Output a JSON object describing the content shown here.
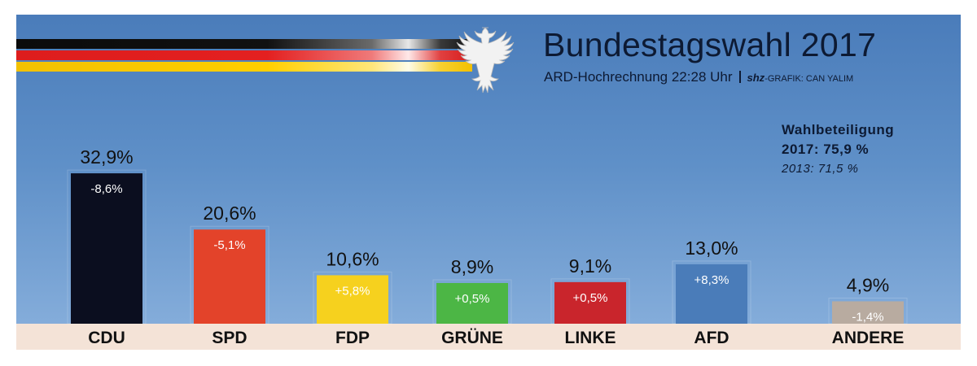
{
  "header": {
    "title": "Bundestagswahl 2017",
    "subtitle": "ARD-Hochrechnung 22:28 Uhr",
    "brand": "shz",
    "credit": "-GRAFIK: CAN YALIM"
  },
  "turnout": {
    "label": "Wahlbeteiligung",
    "current": "2017: 75,9 %",
    "previous": "2013: 71,5 %"
  },
  "colors": {
    "CDU": "#0b0e1f",
    "SPD": "#e3432a",
    "FDP": "#f6d11e",
    "GRÜNE": "#4cb645",
    "LINKE": "#c9252c",
    "AFD": "#4a7cb9",
    "ANDERE": "#b8aba0"
  },
  "chart_data": {
    "type": "bar",
    "title": "Bundestagswahl 2017",
    "categories": [
      "CDU",
      "SPD",
      "FDP",
      "GRÜNE",
      "LINKE",
      "AFD",
      "ANDERE"
    ],
    "values": [
      32.9,
      20.6,
      10.6,
      8.9,
      9.1,
      13.0,
      4.9
    ],
    "value_labels": [
      "32,9%",
      "20,6%",
      "10,6%",
      "8,9%",
      "9,1%",
      "13,0%",
      "4,9%"
    ],
    "changes": [
      -8.6,
      -5.1,
      5.8,
      0.5,
      0.5,
      8.3,
      -1.4
    ],
    "change_labels": [
      "-8,6%",
      "-5,1%",
      "+5,8%",
      "+0,5%",
      "+0,5%",
      "+8,3%",
      "-1,4%"
    ],
    "ylim": [
      0,
      35
    ],
    "grid": false,
    "legend": "none"
  }
}
